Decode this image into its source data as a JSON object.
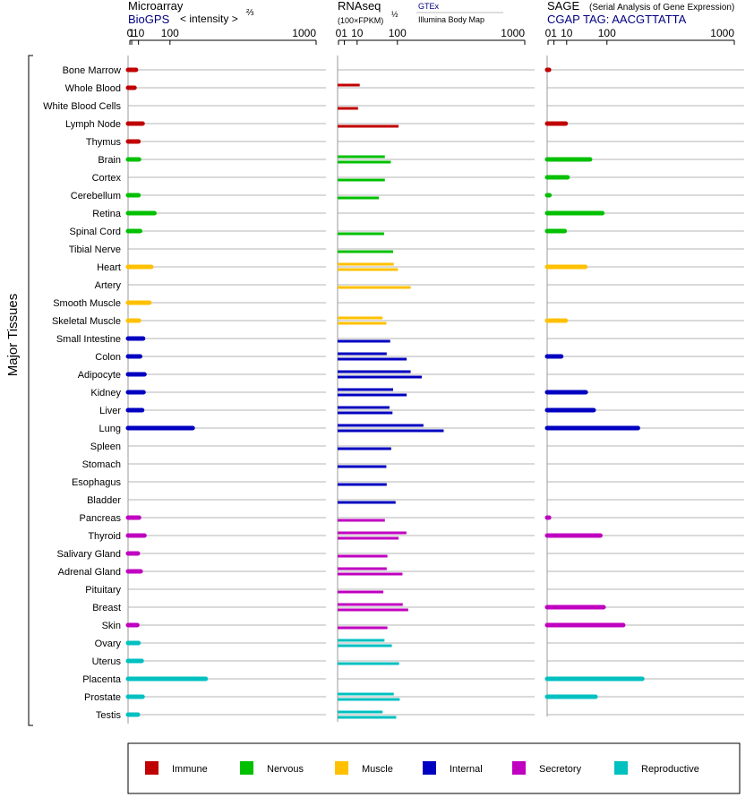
{
  "chart_data": {
    "type": "bar",
    "ylabel": "Major Tissues",
    "categories": [
      "Bone Marrow",
      "Whole Blood",
      "White Blood Cells",
      "Lymph Node",
      "Thymus",
      "Brain",
      "Cortex",
      "Cerebellum",
      "Retina",
      "Spinal Cord",
      "Tibial Nerve",
      "Heart",
      "Artery",
      "Smooth Muscle",
      "Skeletal Muscle",
      "Small Intestine",
      "Colon",
      "Adipocyte",
      "Kidney",
      "Liver",
      "Lung",
      "Spleen",
      "Stomach",
      "Esophagus",
      "Bladder",
      "Pancreas",
      "Thyroid",
      "Salivary Gland",
      "Adrenal Gland",
      "Pituitary",
      "Breast",
      "Skin",
      "Ovary",
      "Uterus",
      "Placenta",
      "Prostate",
      "Testis"
    ],
    "category_groups": [
      "Immune",
      "Immune",
      "Immune",
      "Immune",
      "Immune",
      "Nervous",
      "Nervous",
      "Nervous",
      "Nervous",
      "Nervous",
      "Nervous",
      "Muscle",
      "Muscle",
      "Muscle",
      "Muscle",
      "Internal",
      "Internal",
      "Internal",
      "Internal",
      "Internal",
      "Internal",
      "Internal",
      "Internal",
      "Internal",
      "Internal",
      "Secretory",
      "Secretory",
      "Secretory",
      "Secretory",
      "Secretory",
      "Secretory",
      "Secretory",
      "Reproductive",
      "Reproductive",
      "Reproductive",
      "Reproductive",
      "Reproductive"
    ],
    "legend": {
      "placement": "bottom",
      "items": [
        {
          "label": "Immune",
          "color": "#c00000"
        },
        {
          "label": "Nervous",
          "color": "#00c000"
        },
        {
          "label": "Muscle",
          "color": "#ffc000"
        },
        {
          "label": "Internal",
          "color": "#0000c0"
        },
        {
          "label": "Secretory",
          "color": "#c000c0"
        },
        {
          "label": "Reproductive",
          "color": "#00c0c0"
        }
      ]
    },
    "panels": [
      {
        "title": "Microarray",
        "subtitle": "BioGPS",
        "axis_label": "< intensity >",
        "axis_exponent": "⅔",
        "scale": "power-2/3",
        "ticks": [
          0,
          1,
          10,
          100,
          1000
        ],
        "xlim": [
          0,
          1000
        ],
        "values": [
          [
            6
          ],
          [
            4
          ],
          [
            null
          ],
          [
            18
          ],
          [
            10
          ],
          [
            11
          ],
          [
            null
          ],
          [
            10
          ],
          [
            48
          ],
          [
            13
          ],
          [
            null
          ],
          [
            39
          ],
          [
            null
          ],
          [
            34
          ],
          [
            11
          ],
          [
            19
          ],
          [
            13
          ],
          [
            22
          ],
          [
            20
          ],
          [
            17
          ],
          [
            196
          ],
          [
            null
          ],
          [
            null
          ],
          [
            null
          ],
          [
            null
          ],
          [
            11
          ],
          [
            22
          ],
          [
            9
          ],
          [
            14
          ],
          [
            null
          ],
          [
            null
          ],
          [
            8
          ],
          [
            10
          ],
          [
            16
          ],
          [
            260
          ],
          [
            18
          ],
          [
            9
          ]
        ]
      },
      {
        "title": "RNAseq",
        "axis_label": "(100×FPKM)",
        "axis_exponent": "½",
        "source_line1": "GTEx",
        "source_line2": "Illumina Body Map",
        "scale": "power-1/2",
        "ticks": [
          0,
          1,
          10,
          100,
          1000
        ],
        "xlim": [
          0,
          1000
        ],
        "values": [
          [
            null,
            null
          ],
          [
            13,
            null
          ],
          [
            null,
            11
          ],
          [
            null,
            104
          ],
          [
            null,
            null
          ],
          [
            62,
            79
          ],
          [
            null,
            62
          ],
          [
            null,
            47
          ],
          [
            null,
            null
          ],
          [
            null,
            60
          ],
          [
            null,
            86
          ],
          [
            88,
            102
          ],
          [
            null,
            150
          ],
          [
            null,
            null
          ],
          [
            56,
            66
          ],
          [
            null,
            77
          ],
          [
            67,
            134
          ],
          [
            150,
            200
          ],
          [
            86,
            134
          ],
          [
            75,
            84
          ],
          [
            208,
            319
          ],
          [
            null,
            80
          ],
          [
            null,
            66
          ],
          [
            null,
            67
          ],
          [
            null,
            94
          ],
          [
            null,
            62
          ],
          [
            133,
            104
          ],
          [
            null,
            69
          ],
          [
            67,
            118
          ],
          [
            null,
            58
          ],
          [
            119,
            140
          ],
          [
            null,
            69
          ],
          [
            61,
            82
          ],
          [
            null,
            106
          ],
          [
            null,
            null
          ],
          [
            88,
            108
          ],
          [
            56,
            96
          ]
        ]
      },
      {
        "title": "SAGE",
        "title_note": "(Serial Analysis of Gene Expression)",
        "subtitle": "CGAP TAG: AACGTTATTA",
        "scale": "power-1/2",
        "ticks": [
          0,
          1,
          10,
          100,
          1000
        ],
        "xlim": [
          0,
          1000
        ],
        "values": [
          [
            0.03
          ],
          [
            null
          ],
          [
            null
          ],
          [
            9
          ],
          [
            null
          ],
          [
            51
          ],
          [
            11
          ],
          [
            0.06
          ],
          [
            85
          ],
          [
            8
          ],
          [
            null
          ],
          [
            40
          ],
          [
            null
          ],
          [
            null
          ],
          [
            9
          ],
          [
            null
          ],
          [
            5
          ],
          [
            null
          ],
          [
            41
          ],
          [
            60
          ],
          [
            233
          ],
          [
            null
          ],
          [
            null
          ],
          [
            null
          ],
          [
            null
          ],
          [
            0.03
          ],
          [
            79
          ],
          [
            null
          ],
          [
            null
          ],
          [
            null
          ],
          [
            89
          ],
          [
            163
          ],
          [
            null
          ],
          [
            null
          ],
          [
            256
          ],
          [
            65
          ],
          [
            null
          ]
        ]
      }
    ]
  }
}
